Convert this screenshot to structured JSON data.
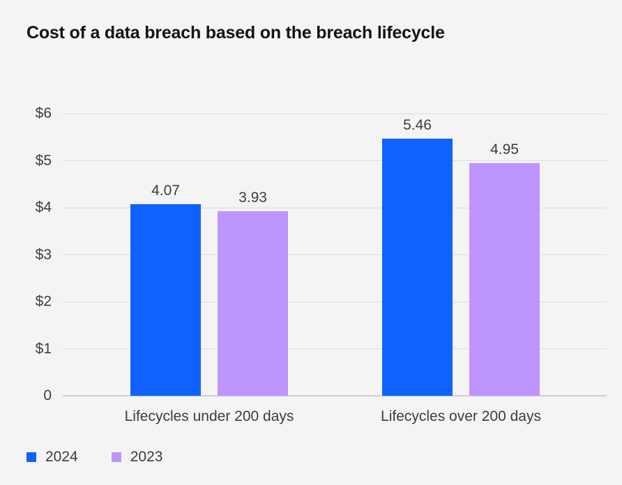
{
  "chart_data": {
    "type": "bar",
    "title": "Cost of a data breach based on the breach lifecycle",
    "categories": [
      "Lifecycles under 200 days",
      "Lifecycles over 200 days"
    ],
    "series": [
      {
        "name": "2024",
        "values": [
          4.07,
          5.46
        ],
        "color": "#0f62fe"
      },
      {
        "name": "2023",
        "values": [
          3.93,
          4.95
        ],
        "color": "#be95ff"
      }
    ],
    "y_ticks": [
      "$6",
      "$5",
      "$4",
      "$3",
      "$2",
      "$1",
      "0"
    ],
    "y_tick_values": [
      6,
      5,
      4,
      3,
      2,
      1,
      0
    ],
    "ylim": [
      0,
      6
    ],
    "grid": true,
    "legend_position": "bottom-left",
    "value_labels": [
      "4.07",
      "3.93",
      "5.46",
      "4.95"
    ]
  },
  "colors": {
    "background": "#f4f4f4",
    "grid": "#dcdce1",
    "zero_line": "#cfcfd6",
    "title_text": "#111319",
    "axis_text": "#3c3c3e"
  }
}
